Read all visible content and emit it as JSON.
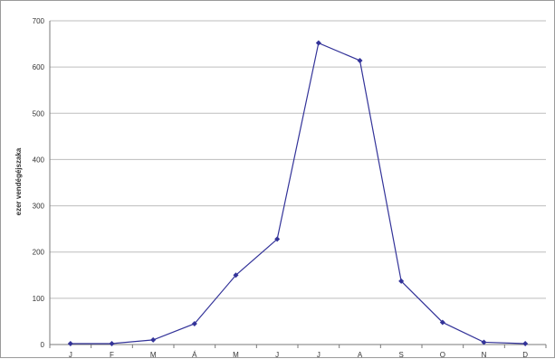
{
  "chart_data": {
    "type": "line",
    "title": "",
    "xlabel": "",
    "ylabel": "ezer vendégéjszaka",
    "categories": [
      "J",
      "F",
      "M",
      "Á",
      "M",
      "J",
      "J",
      "A",
      "S",
      "O",
      "N",
      "D"
    ],
    "series": [
      {
        "values": [
          2,
          2,
          10,
          45,
          150,
          228,
          652,
          614,
          137,
          48,
          5,
          2
        ]
      }
    ],
    "ylim": [
      0,
      700
    ],
    "yticks": [
      "0",
      "100",
      "200",
      "300",
      "400",
      "500",
      "600",
      "700"
    ],
    "grid": true,
    "legend": "none",
    "line_color": "#333399",
    "grid_color": "#bdbdbd"
  }
}
